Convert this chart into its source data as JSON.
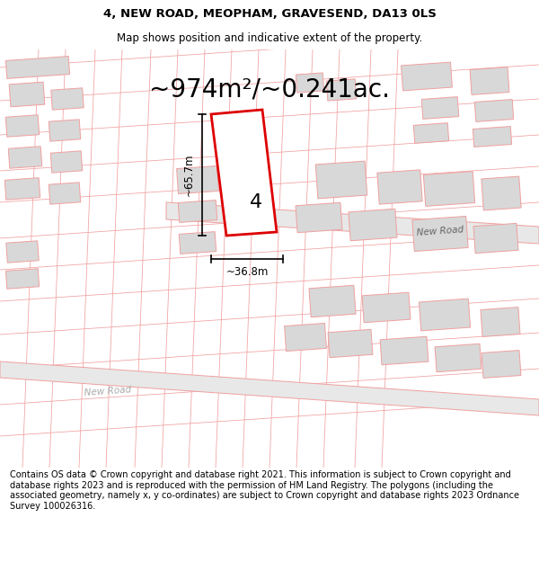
{
  "title_line1": "4, NEW ROAD, MEOPHAM, GRAVESEND, DA13 0LS",
  "title_line2": "Map shows position and indicative extent of the property.",
  "area_text": "~974m²/~0.241ac.",
  "label_number": "4",
  "dim_width": "~36.8m",
  "dim_height": "~65.7m",
  "road_label1": "New Road",
  "road_label2": "New Road",
  "footer_text": "Contains OS data © Crown copyright and database right 2021. This information is subject to Crown copyright and database rights 2023 and is reproduced with the permission of HM Land Registry. The polygons (including the associated geometry, namely x, y co-ordinates) are subject to Crown copyright and database rights 2023 Ordnance Survey 100026316.",
  "bg_color": "#ffffff",
  "line_color": "#f0a0a0",
  "plot_color": "#dd0000",
  "building_fill": "#d8d8d8",
  "road_fill": "#e8e8e8",
  "map_bg": "#ffffff"
}
